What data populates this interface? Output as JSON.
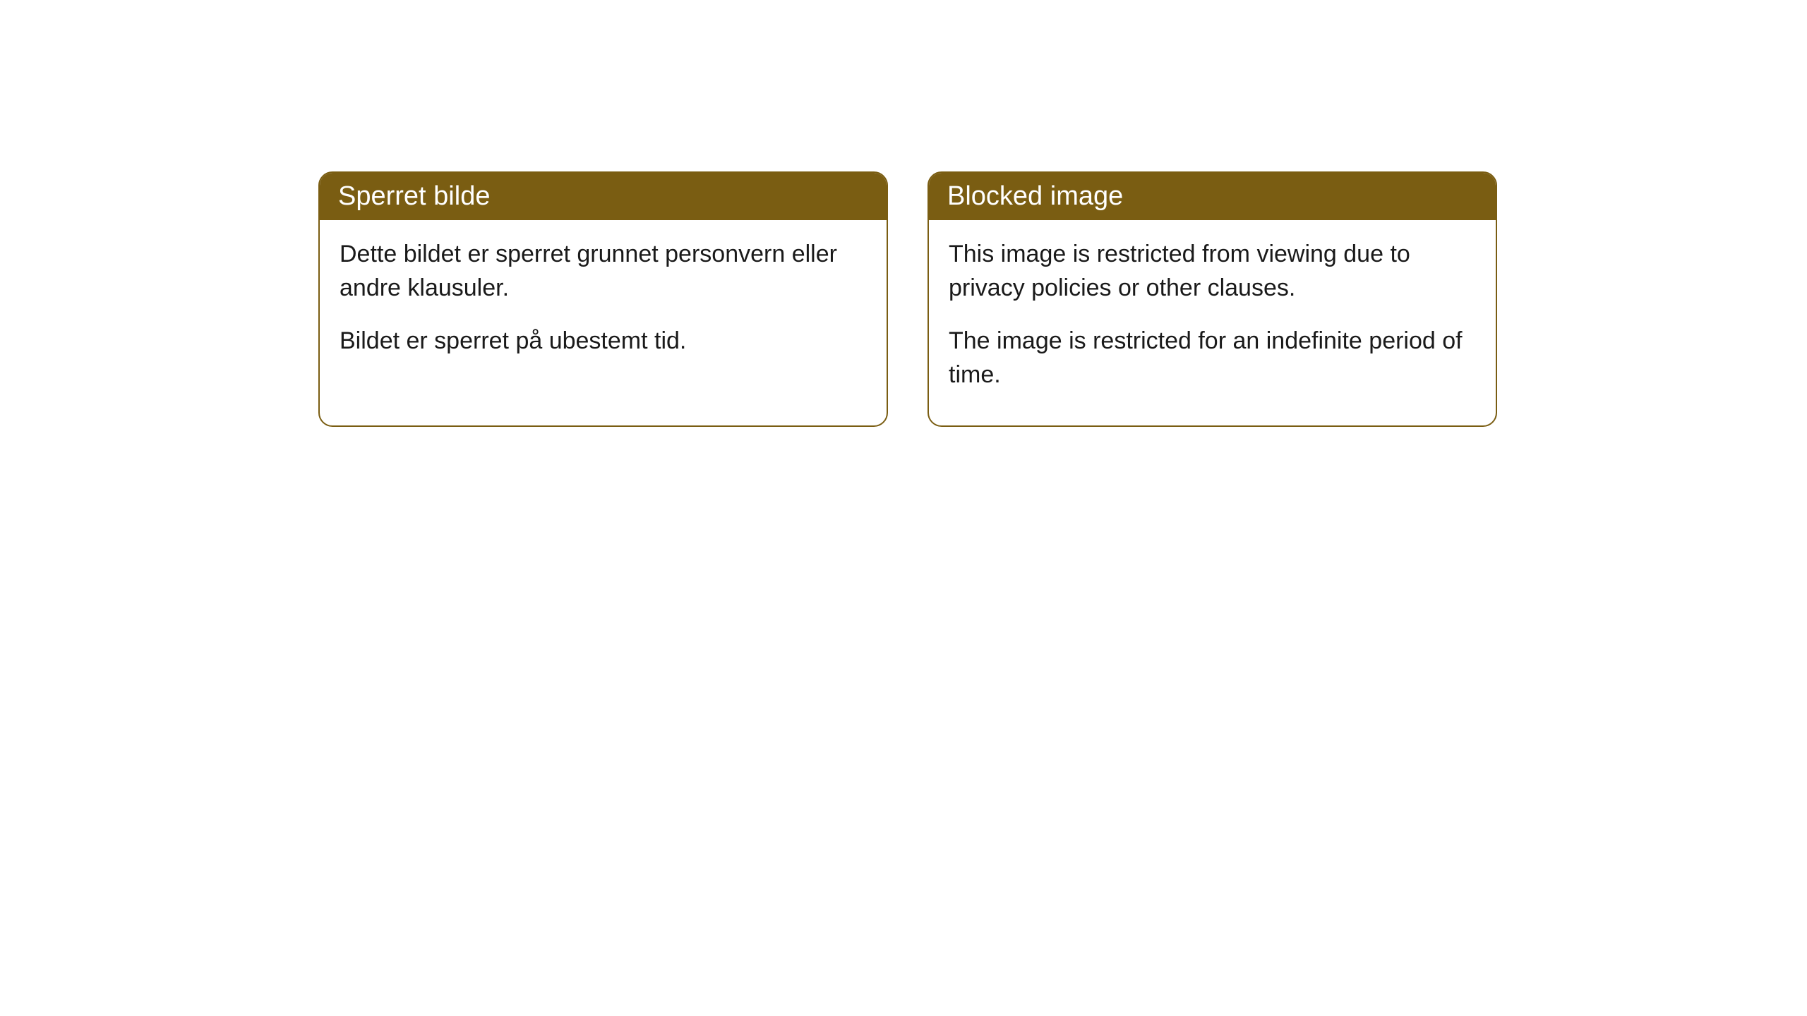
{
  "cards": [
    {
      "title": "Sperret bilde",
      "paragraph1": "Dette bildet er sperret grunnet personvern eller andre klausuler.",
      "paragraph2": "Bildet er sperret på ubestemt tid."
    },
    {
      "title": "Blocked image",
      "paragraph1": "This image is restricted from viewing due to privacy policies or other clauses.",
      "paragraph2": "The image is restricted for an indefinite period of time."
    }
  ],
  "styling": {
    "header_background": "#7a5d12",
    "header_text_color": "#ffffff",
    "card_border_color": "#7a5d12",
    "card_background": "#ffffff",
    "body_text_color": "#1a1a1a",
    "page_background": "#ffffff",
    "border_radius": 20,
    "title_fontsize": 38,
    "body_fontsize": 34
  }
}
